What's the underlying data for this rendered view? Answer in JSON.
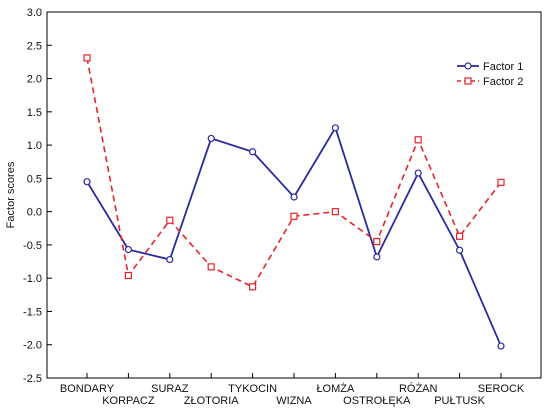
{
  "chart_data": {
    "type": "line",
    "title": "",
    "xlabel": "",
    "ylabel": "Factor scores",
    "ylim": [
      -2.5,
      3.0
    ],
    "yticks": [
      "3.0",
      "2.5",
      "2.0",
      "1.5",
      "1.0",
      "0.5",
      "0.0",
      "-0.5",
      "-1.0",
      "-1.5",
      "-2.0",
      "-2.5"
    ],
    "categories": [
      "BONDARY",
      "KORPACZ",
      "SURAZ",
      "ZŁOTORIA",
      "TYKOCIN",
      "WIZNA",
      "ŁOMŻA",
      "OSTROŁĘKA",
      "RÓŻAN",
      "PUŁTUSK",
      "SEROCK"
    ],
    "grid": false,
    "legend_position": "top-right",
    "series": [
      {
        "name": "Factor 1",
        "color": "#2a2aa0",
        "style": "solid",
        "marker": "circle",
        "values": [
          0.45,
          -0.57,
          -0.72,
          1.1,
          0.9,
          0.22,
          1.26,
          -0.68,
          0.58,
          -0.58,
          -2.02
        ]
      },
      {
        "name": "Factor 2",
        "color": "#e8232a",
        "style": "dashed",
        "marker": "square",
        "values": [
          2.31,
          -0.96,
          -0.13,
          -0.83,
          -1.13,
          -0.07,
          0.0,
          -0.45,
          1.08,
          -0.37,
          0.44
        ]
      }
    ]
  }
}
